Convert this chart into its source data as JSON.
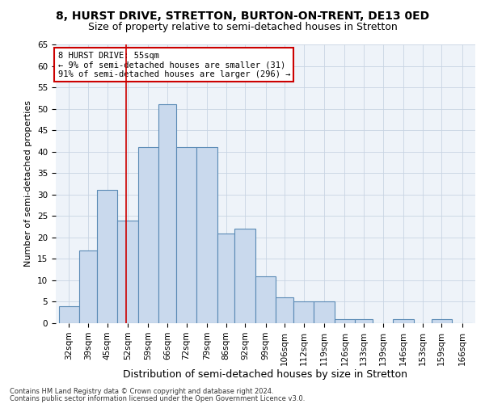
{
  "title": "8, HURST DRIVE, STRETTON, BURTON-ON-TRENT, DE13 0ED",
  "subtitle": "Size of property relative to semi-detached houses in Stretton",
  "xlabel": "Distribution of semi-detached houses by size in Stretton",
  "ylabel": "Number of semi-detached properties",
  "annotation_title": "8 HURST DRIVE: 55sqm",
  "annotation_line1": "← 9% of semi-detached houses are smaller (31)",
  "annotation_line2": "91% of semi-detached houses are larger (296) →",
  "property_size": 55,
  "footer1": "Contains HM Land Registry data © Crown copyright and database right 2024.",
  "footer2": "Contains public sector information licensed under the Open Government Licence v3.0.",
  "categories": [
    "32sqm",
    "39sqm",
    "45sqm",
    "52sqm",
    "59sqm",
    "66sqm",
    "72sqm",
    "79sqm",
    "86sqm",
    "92sqm",
    "99sqm",
    "106sqm",
    "112sqm",
    "119sqm",
    "126sqm",
    "133sqm",
    "139sqm",
    "146sqm",
    "153sqm",
    "159sqm",
    "166sqm"
  ],
  "values": [
    4,
    17,
    31,
    24,
    41,
    51,
    41,
    41,
    21,
    22,
    11,
    6,
    5,
    5,
    1,
    1,
    0,
    1,
    0,
    1,
    0
  ],
  "bar_left_edges": [
    32,
    39,
    45,
    52,
    59,
    66,
    72,
    79,
    86,
    92,
    99,
    106,
    112,
    119,
    126,
    133,
    139,
    146,
    153,
    159,
    166
  ],
  "bar_widths": [
    7,
    6,
    7,
    7,
    7,
    6,
    7,
    7,
    6,
    7,
    7,
    6,
    7,
    7,
    7,
    6,
    7,
    7,
    6,
    7,
    7
  ],
  "bar_color": "#c9d9ed",
  "bar_edge_color": "#5a8ab5",
  "vline_x": 55,
  "vline_color": "#cc0000",
  "ylim": [
    0,
    65
  ],
  "yticks": [
    0,
    5,
    10,
    15,
    20,
    25,
    30,
    35,
    40,
    45,
    50,
    55,
    60,
    65
  ],
  "grid_color": "#c8d4e3",
  "bg_color": "#eef3f9",
  "title_fontsize": 10,
  "subtitle_fontsize": 9,
  "tick_fontsize": 7.5,
  "ylabel_fontsize": 8,
  "xlabel_fontsize": 9,
  "footer_fontsize": 6,
  "annotation_fontsize": 7.5,
  "annotation_box_color": "#ffffff",
  "annotation_box_edgecolor": "#cc0000"
}
